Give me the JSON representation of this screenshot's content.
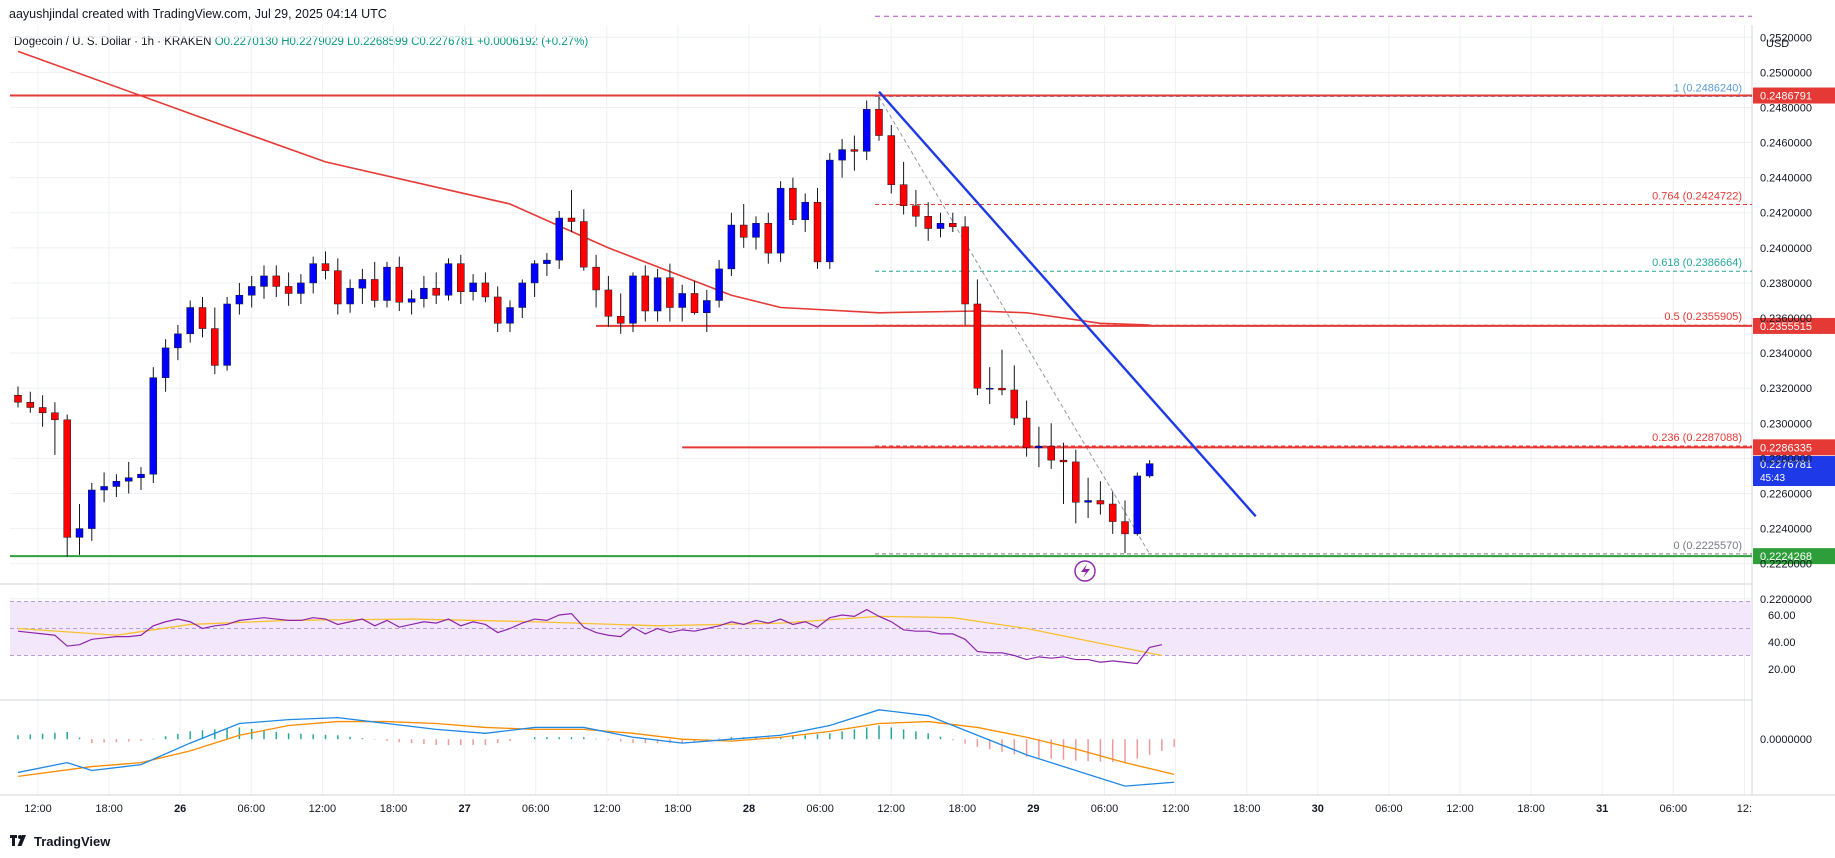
{
  "header": {
    "created_by": "aayushjindal created with TradingView.com, Jul 29, 2025 04:14 UTC"
  },
  "legend": {
    "symbol": "Dogecoin / U. S. Dollar · 1h · KRAKEN",
    "open": "O0.2270130",
    "high": "H0.2279029",
    "low": "L0.2268599",
    "close": "C0.2276781",
    "change": "+0.0006192 (+0.27%)"
  },
  "axis": {
    "currency": "USD"
  },
  "footer": {
    "brand": "TradingView"
  },
  "colors": {
    "up": "#0000ff",
    "down": "#ff0000",
    "ema": "#e53935",
    "trendline": "#1e3ae8",
    "support": "#2e9e3a",
    "resistance": "#e53935",
    "rsi": "#8e24aa",
    "rsi_ma": "#fbc02d",
    "macd": "#1e88e5",
    "signal": "#fb8c00"
  },
  "chart_data": {
    "type": "candlestick",
    "title": "Dogecoin / U. S. Dollar · 1h · KRAKEN",
    "yaxis": {
      "min": 0.2205,
      "max": 0.2527,
      "ticks": [
        "0.2200000",
        "0.2220000",
        "0.2240000",
        "0.2260000",
        "0.2280000",
        "0.2300000",
        "0.2320000",
        "0.2340000",
        "0.2360000",
        "0.2380000",
        "0.2400000",
        "0.2420000",
        "0.2440000",
        "0.2460000",
        "0.2480000",
        "0.2500000",
        "0.2520000"
      ]
    },
    "xaxis": {
      "ticks": [
        "12:00",
        "18:00",
        "26",
        "06:00",
        "12:00",
        "18:00",
        "27",
        "06:00",
        "12:00",
        "18:00",
        "28",
        "06:00",
        "12:00",
        "18:00",
        "29",
        "06:00",
        "12:00",
        "18:00",
        "30",
        "06:00",
        "12:00",
        "18:00",
        "31",
        "06:00",
        "12:"
      ],
      "bold_ticks": [
        "26",
        "27",
        "28",
        "29",
        "30",
        "31"
      ]
    },
    "candles": [
      [
        0.2316,
        0.2321,
        0.2309,
        0.2312
      ],
      [
        0.2312,
        0.2318,
        0.2306,
        0.2309
      ],
      [
        0.2309,
        0.2316,
        0.2298,
        0.2306
      ],
      [
        0.2306,
        0.2312,
        0.2282,
        0.2302
      ],
      [
        0.2302,
        0.2305,
        0.2224,
        0.2235
      ],
      [
        0.2235,
        0.2254,
        0.2225,
        0.224
      ],
      [
        0.224,
        0.2266,
        0.2233,
        0.2262
      ],
      [
        0.2262,
        0.2272,
        0.2255,
        0.2264
      ],
      [
        0.2264,
        0.2271,
        0.2258,
        0.2267
      ],
      [
        0.2267,
        0.2278,
        0.226,
        0.2269
      ],
      [
        0.2269,
        0.2275,
        0.2262,
        0.2271
      ],
      [
        0.2271,
        0.2332,
        0.2266,
        0.2326
      ],
      [
        0.2326,
        0.2348,
        0.2318,
        0.2343
      ],
      [
        0.2343,
        0.2356,
        0.2336,
        0.2351
      ],
      [
        0.2351,
        0.237,
        0.2346,
        0.2366
      ],
      [
        0.2366,
        0.2372,
        0.2349,
        0.2354
      ],
      [
        0.2354,
        0.2366,
        0.2328,
        0.2333
      ],
      [
        0.2333,
        0.2372,
        0.233,
        0.2368
      ],
      [
        0.2368,
        0.238,
        0.2362,
        0.2373
      ],
      [
        0.2373,
        0.2384,
        0.2366,
        0.2378
      ],
      [
        0.2378,
        0.239,
        0.2371,
        0.2384
      ],
      [
        0.2384,
        0.239,
        0.2372,
        0.2378
      ],
      [
        0.2378,
        0.2386,
        0.2367,
        0.2374
      ],
      [
        0.2374,
        0.2385,
        0.2368,
        0.238
      ],
      [
        0.238,
        0.2395,
        0.2374,
        0.2391
      ],
      [
        0.2391,
        0.2398,
        0.2382,
        0.2387
      ],
      [
        0.2387,
        0.2394,
        0.2362,
        0.2368
      ],
      [
        0.2368,
        0.2382,
        0.2363,
        0.2377
      ],
      [
        0.2377,
        0.2388,
        0.2368,
        0.2382
      ],
      [
        0.2382,
        0.2392,
        0.2366,
        0.237
      ],
      [
        0.237,
        0.2392,
        0.2366,
        0.2389
      ],
      [
        0.2389,
        0.2395,
        0.2364,
        0.2369
      ],
      [
        0.2369,
        0.2376,
        0.2362,
        0.2371
      ],
      [
        0.2371,
        0.2384,
        0.2366,
        0.2377
      ],
      [
        0.2377,
        0.2386,
        0.2368,
        0.2373
      ],
      [
        0.2373,
        0.2394,
        0.237,
        0.2391
      ],
      [
        0.2391,
        0.2396,
        0.2368,
        0.2375
      ],
      [
        0.2375,
        0.2385,
        0.237,
        0.238
      ],
      [
        0.238,
        0.2386,
        0.2369,
        0.2372
      ],
      [
        0.2372,
        0.2378,
        0.2352,
        0.2357
      ],
      [
        0.2357,
        0.237,
        0.2352,
        0.2366
      ],
      [
        0.2366,
        0.2382,
        0.236,
        0.238
      ],
      [
        0.238,
        0.2393,
        0.2372,
        0.2391
      ],
      [
        0.2391,
        0.2397,
        0.2384,
        0.2393
      ],
      [
        0.2393,
        0.2421,
        0.2388,
        0.2417
      ],
      [
        0.2417,
        0.2433,
        0.2409,
        0.2415
      ],
      [
        0.2415,
        0.2422,
        0.2387,
        0.2389
      ],
      [
        0.2389,
        0.2396,
        0.2366,
        0.2376
      ],
      [
        0.2376,
        0.2384,
        0.2355,
        0.2361
      ],
      [
        0.2361,
        0.2374,
        0.2351,
        0.2357
      ],
      [
        0.2357,
        0.2386,
        0.2352,
        0.2384
      ],
      [
        0.2384,
        0.239,
        0.2358,
        0.2364
      ],
      [
        0.2364,
        0.2388,
        0.2358,
        0.2383
      ],
      [
        0.2383,
        0.2391,
        0.2358,
        0.2366
      ],
      [
        0.2366,
        0.2379,
        0.2358,
        0.2374
      ],
      [
        0.2374,
        0.2381,
        0.2362,
        0.2363
      ],
      [
        0.2363,
        0.2376,
        0.2352,
        0.237
      ],
      [
        0.237,
        0.2393,
        0.2366,
        0.2388
      ],
      [
        0.2388,
        0.242,
        0.2384,
        0.2413
      ],
      [
        0.2413,
        0.2425,
        0.24,
        0.2406
      ],
      [
        0.2406,
        0.2418,
        0.2399,
        0.2414
      ],
      [
        0.2414,
        0.242,
        0.2391,
        0.2397
      ],
      [
        0.2397,
        0.2438,
        0.2392,
        0.2434
      ],
      [
        0.2434,
        0.244,
        0.2413,
        0.2416
      ],
      [
        0.2416,
        0.2431,
        0.2409,
        0.2426
      ],
      [
        0.2426,
        0.2434,
        0.2388,
        0.2392
      ],
      [
        0.2392,
        0.2454,
        0.2388,
        0.245
      ],
      [
        0.245,
        0.2462,
        0.244,
        0.2456
      ],
      [
        0.2456,
        0.2464,
        0.2444,
        0.2455
      ],
      [
        0.2455,
        0.2484,
        0.245,
        0.2479
      ],
      [
        0.2479,
        0.2486,
        0.2461,
        0.2464
      ],
      [
        0.2464,
        0.247,
        0.2431,
        0.2436
      ],
      [
        0.2436,
        0.2449,
        0.2419,
        0.2424
      ],
      [
        0.2424,
        0.2433,
        0.2412,
        0.2418
      ],
      [
        0.2418,
        0.2426,
        0.2404,
        0.2411
      ],
      [
        0.2411,
        0.242,
        0.2406,
        0.2414
      ],
      [
        0.2414,
        0.242,
        0.2409,
        0.2412
      ],
      [
        0.2412,
        0.2418,
        0.2356,
        0.2368
      ],
      [
        0.2368,
        0.2382,
        0.2316,
        0.232
      ],
      [
        0.232,
        0.2332,
        0.2311,
        0.232
      ],
      [
        0.232,
        0.2342,
        0.2316,
        0.2319
      ],
      [
        0.2319,
        0.2333,
        0.2299,
        0.2303
      ],
      [
        0.2303,
        0.2313,
        0.2281,
        0.2286
      ],
      [
        0.2286,
        0.2298,
        0.2275,
        0.2287
      ],
      [
        0.2287,
        0.23,
        0.2274,
        0.2279
      ],
      [
        0.2279,
        0.2289,
        0.2254,
        0.2278
      ],
      [
        0.2278,
        0.2285,
        0.2243,
        0.2255
      ],
      [
        0.2255,
        0.2269,
        0.2246,
        0.2256
      ],
      [
        0.2256,
        0.2267,
        0.2248,
        0.2254
      ],
      [
        0.2254,
        0.2261,
        0.2237,
        0.2244
      ],
      [
        0.2244,
        0.2256,
        0.2226,
        0.2237
      ],
      [
        0.2237,
        0.2272,
        0.2236,
        0.227
      ],
      [
        0.227,
        0.2279,
        0.2269,
        0.2277
      ]
    ],
    "ema": [
      [
        0,
        0.2512
      ],
      [
        15,
        0.2474
      ],
      [
        25,
        0.2449
      ],
      [
        40,
        0.2425
      ],
      [
        48,
        0.24
      ],
      [
        58,
        0.2373
      ],
      [
        62,
        0.2366
      ],
      [
        70,
        0.2363
      ],
      [
        78,
        0.2364
      ],
      [
        82,
        0.2363
      ],
      [
        88,
        0.2357
      ],
      [
        92,
        0.2356
      ]
    ],
    "horizontal_levels": [
      {
        "name": "resistance-top",
        "value": 0.24868,
        "x_from": 0,
        "label": "0.2486791",
        "color": "#e53935"
      },
      {
        "name": "resistance-mid",
        "value": 0.23555,
        "x_from": 47,
        "label": "0.2355515",
        "color": "#e53935"
      },
      {
        "name": "resistance-low",
        "value": 0.22863,
        "x_from": 54,
        "label": "0.2286335",
        "color": "#e53935"
      },
      {
        "name": "support",
        "value": 0.22243,
        "x_from": 0,
        "label": "0.2224268",
        "color": "#2e9e3a"
      }
    ],
    "current_price": {
      "value": 0.22768,
      "label": "0.2276781",
      "countdown": "45:43"
    },
    "fibonacci": {
      "top": 0.248624,
      "bottom": 0.222557,
      "start_index": 70,
      "levels": [
        {
          "ratio": "1",
          "value": 0.248624,
          "label": "1 (0.2486240)",
          "color": "#5b9bd5"
        },
        {
          "ratio": "0.764",
          "value": 0.2424722,
          "label": "0.764 (0.2424722)",
          "color": "#e53935"
        },
        {
          "ratio": "0.618",
          "value": 0.2386664,
          "label": "0.618 (0.2386664)",
          "color": "#26a69a"
        },
        {
          "ratio": "0.5",
          "value": 0.2355905,
          "label": "0.5 (0.2355905)",
          "color": "#e53935"
        },
        {
          "ratio": "0.236",
          "value": 0.2287088,
          "label": "0.236 (0.2287088)",
          "color": "#e53935"
        },
        {
          "ratio": "0",
          "value": 0.222557,
          "label": "0 (0.2225570)",
          "color": "#787b86"
        }
      ],
      "top_extension_value": 0.2532
    },
    "trendline": {
      "from": [
        70,
        0.2489
      ],
      "to": [
        99,
        0.2247
      ]
    },
    "rsi": {
      "ticks": [
        "60.00",
        "40.00",
        "20.00"
      ],
      "band": [
        30,
        70
      ],
      "mid": 50,
      "values": [
        48,
        47,
        46,
        45,
        37,
        38,
        42,
        43,
        44,
        44,
        45,
        52,
        55,
        57,
        55,
        50,
        52,
        53,
        56,
        57,
        58,
        57,
        56,
        56,
        58,
        57,
        53,
        55,
        57,
        52,
        56,
        51,
        53,
        55,
        54,
        57,
        52,
        55,
        53,
        47,
        50,
        54,
        57,
        56,
        60,
        61,
        51,
        47,
        45,
        44,
        51,
        46,
        50,
        47,
        49,
        48,
        50,
        52,
        55,
        53,
        56,
        54,
        57,
        53,
        55,
        51,
        58,
        60,
        59,
        64,
        59,
        55,
        49,
        48,
        48,
        46,
        46,
        42,
        33,
        32,
        32,
        30,
        27,
        29,
        28,
        29,
        27,
        27,
        25,
        26,
        25,
        24,
        36,
        38
      ],
      "ma": [
        [
          0,
          50
        ],
        [
          8,
          45
        ],
        [
          14,
          53
        ],
        [
          22,
          56
        ],
        [
          32,
          57
        ],
        [
          42,
          55
        ],
        [
          52,
          52
        ],
        [
          62,
          54
        ],
        [
          70,
          59
        ],
        [
          76,
          58
        ],
        [
          82,
          50
        ],
        [
          88,
          39
        ],
        [
          93,
          30
        ]
      ]
    },
    "macd": {
      "ticks": [
        "0.0000000"
      ],
      "zero": 0,
      "macd_line": [
        [
          0,
          -0.0017
        ],
        [
          4,
          -0.0012
        ],
        [
          6,
          -0.0016
        ],
        [
          10,
          -0.0013
        ],
        [
          14,
          -0.0002
        ],
        [
          18,
          0.0008
        ],
        [
          22,
          0.001
        ],
        [
          26,
          0.0011
        ],
        [
          30,
          0.0008
        ],
        [
          34,
          0.0005
        ],
        [
          38,
          0.0003
        ],
        [
          42,
          0.0006
        ],
        [
          46,
          0.0006
        ],
        [
          50,
          0.0001
        ],
        [
          54,
          -0.0002
        ],
        [
          58,
          0.0
        ],
        [
          62,
          0.0002
        ],
        [
          66,
          0.0007
        ],
        [
          70,
          0.0015
        ],
        [
          74,
          0.0012
        ],
        [
          78,
          0.0002
        ],
        [
          82,
          -0.0008
        ],
        [
          86,
          -0.0016
        ],
        [
          90,
          -0.0024
        ],
        [
          94,
          -0.0022
        ]
      ],
      "signal_line": [
        [
          0,
          -0.0019
        ],
        [
          6,
          -0.0014
        ],
        [
          10,
          -0.0012
        ],
        [
          14,
          -0.0006
        ],
        [
          18,
          0.0002
        ],
        [
          22,
          0.0007
        ],
        [
          26,
          0.0009
        ],
        [
          30,
          0.0009
        ],
        [
          34,
          0.0008
        ],
        [
          38,
          0.0006
        ],
        [
          42,
          0.0005
        ],
        [
          46,
          0.0005
        ],
        [
          50,
          0.0003
        ],
        [
          54,
          0.0
        ],
        [
          58,
          -0.0001
        ],
        [
          62,
          0.0001
        ],
        [
          66,
          0.0004
        ],
        [
          70,
          0.0008
        ],
        [
          74,
          0.0009
        ],
        [
          78,
          0.0006
        ],
        [
          82,
          0.0001
        ],
        [
          86,
          -0.0005
        ],
        [
          90,
          -0.0012
        ],
        [
          94,
          -0.0018
        ]
      ],
      "min": -0.0027,
      "max": 0.0019
    },
    "annotations": [
      "0.2200000"
    ]
  }
}
